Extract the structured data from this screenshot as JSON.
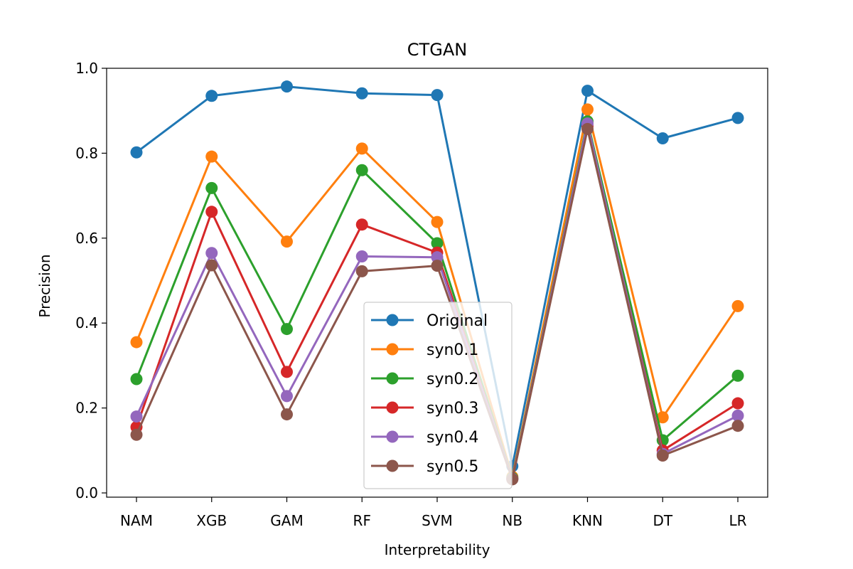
{
  "chart_data": {
    "type": "line",
    "title": "CTGAN",
    "xlabel": "Interpretability",
    "ylabel": "Precision",
    "categories": [
      "NAM",
      "XGB",
      "GAM",
      "RF",
      "SVM",
      "NB",
      "KNN",
      "DT",
      "LR"
    ],
    "ylim": [
      -0.01,
      1.0
    ],
    "yticks": [
      0.0,
      0.2,
      0.4,
      0.6,
      0.8,
      1.0
    ],
    "ytick_labels": [
      "0.0",
      "0.2",
      "0.4",
      "0.6",
      "0.8",
      "1.0"
    ],
    "grid": false,
    "legend_position": "lower-center",
    "series": [
      {
        "name": "Original",
        "color": "#1f77b4",
        "values": [
          0.802,
          0.935,
          0.957,
          0.941,
          0.937,
          0.063,
          0.947,
          0.835,
          0.883
        ]
      },
      {
        "name": "syn0.1",
        "color": "#ff7f0e",
        "values": [
          0.355,
          0.792,
          0.592,
          0.811,
          0.638,
          0.038,
          0.903,
          0.178,
          0.44
        ]
      },
      {
        "name": "syn0.2",
        "color": "#2ca02c",
        "values": [
          0.268,
          0.718,
          0.386,
          0.76,
          0.588,
          0.035,
          0.875,
          0.124,
          0.276
        ]
      },
      {
        "name": "syn0.3",
        "color": "#d62728",
        "values": [
          0.155,
          0.662,
          0.285,
          0.632,
          0.566,
          0.033,
          0.864,
          0.1,
          0.211
        ]
      },
      {
        "name": "syn0.4",
        "color": "#9467bd",
        "values": [
          0.18,
          0.565,
          0.228,
          0.557,
          0.555,
          0.033,
          0.87,
          0.092,
          0.182
        ]
      },
      {
        "name": "syn0.5",
        "color": "#8c564b",
        "values": [
          0.137,
          0.536,
          0.185,
          0.522,
          0.535,
          0.032,
          0.857,
          0.088,
          0.158
        ]
      }
    ]
  }
}
